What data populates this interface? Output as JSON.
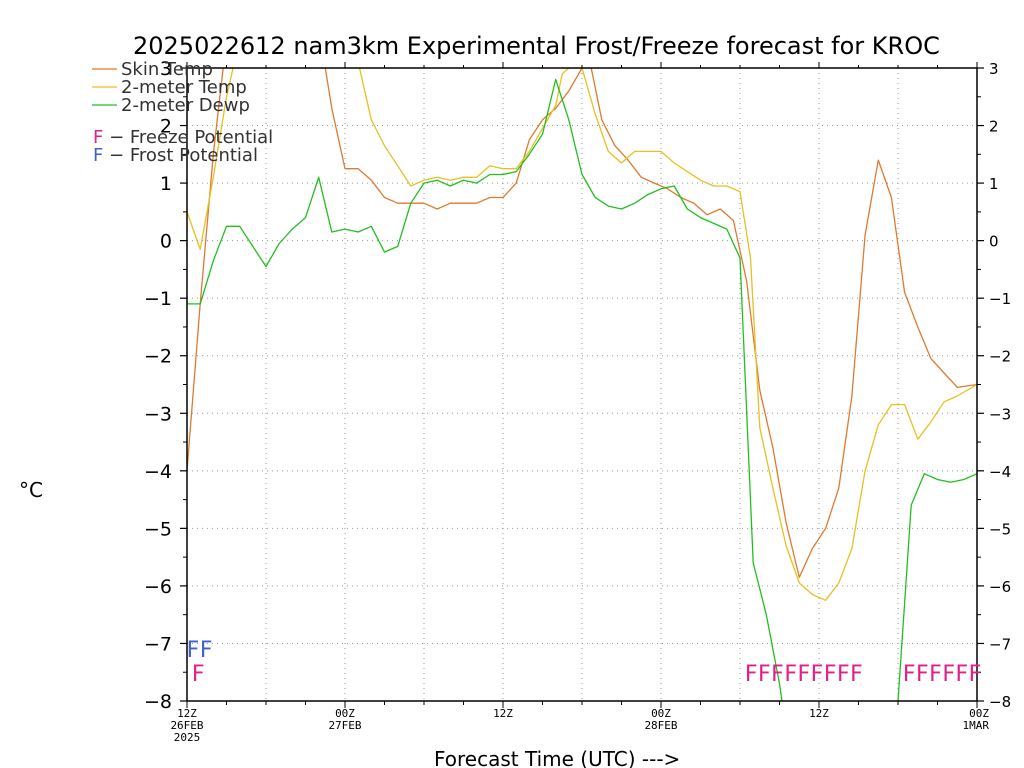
{
  "chart_data": {
    "type": "line",
    "title": "2025022612 nam3km Experimental Frost/Freeze forecast for KROC",
    "xlabel": "Forecast Time (UTC) --->",
    "ylabel": "°C",
    "ylim": [
      -8,
      3
    ],
    "y_ticks": [
      "−8",
      "−7",
      "−6",
      "−5",
      "−4",
      "−3",
      "−2",
      "−1",
      "0",
      "1",
      "2",
      "3"
    ],
    "y_tick_values": [
      -8,
      -7,
      -6,
      -5,
      -4,
      -3,
      -2,
      -1,
      0,
      1,
      2,
      3
    ],
    "x_range_hours": [
      0,
      60
    ],
    "x_ticks": [
      {
        "hour": 0,
        "lines": [
          "12Z",
          "26FEB",
          "2025"
        ]
      },
      {
        "hour": 12,
        "lines": [
          "00Z",
          "27FEB"
        ]
      },
      {
        "hour": 24,
        "lines": [
          "12Z"
        ]
      },
      {
        "hour": 36,
        "lines": [
          "00Z",
          "28FEB"
        ]
      },
      {
        "hour": 48,
        "lines": [
          "12Z"
        ]
      },
      {
        "hour": 60,
        "lines": [
          "00Z",
          "1MAR"
        ]
      }
    ],
    "grid": true,
    "legend_position": "top-left",
    "series": [
      {
        "name": "Skin Temp",
        "color": "#e07a30",
        "points": [
          [
            0,
            -4.0
          ],
          [
            1,
            -1.1
          ],
          [
            2,
            1.5
          ],
          [
            3,
            3.5
          ],
          [
            4,
            3.5
          ],
          [
            5,
            3.5
          ],
          [
            6,
            3.5
          ],
          [
            7,
            3.5
          ],
          [
            8,
            3.5
          ],
          [
            9,
            3.5
          ],
          [
            10,
            3.5
          ],
          [
            10.5,
            3.0
          ],
          [
            11,
            2.3
          ],
          [
            12,
            1.25
          ],
          [
            13,
            1.25
          ],
          [
            14,
            1.05
          ],
          [
            15,
            0.75
          ],
          [
            16,
            0.65
          ],
          [
            17,
            0.65
          ],
          [
            18,
            0.65
          ],
          [
            19,
            0.55
          ],
          [
            20,
            0.65
          ],
          [
            21,
            0.65
          ],
          [
            22,
            0.65
          ],
          [
            23,
            0.75
          ],
          [
            24,
            0.75
          ],
          [
            25,
            1.0
          ],
          [
            26,
            1.75
          ],
          [
            27,
            2.1
          ],
          [
            28,
            2.3
          ],
          [
            29,
            2.6
          ],
          [
            30,
            3.0
          ],
          [
            30.7,
            3.0
          ],
          [
            31.5,
            2.1
          ],
          [
            32.5,
            1.65
          ],
          [
            33.5,
            1.4
          ],
          [
            34.5,
            1.1
          ],
          [
            35.5,
            1.0
          ],
          [
            36.5,
            0.9
          ],
          [
            37.5,
            0.75
          ],
          [
            38.5,
            0.65
          ],
          [
            39.5,
            0.45
          ],
          [
            40.5,
            0.55
          ],
          [
            41.5,
            0.35
          ],
          [
            42.5,
            -0.7
          ],
          [
            43.5,
            -2.6
          ],
          [
            44.5,
            -3.6
          ],
          [
            45.5,
            -4.9
          ],
          [
            46.5,
            -5.85
          ],
          [
            47.5,
            -5.35
          ],
          [
            48.5,
            -5.0
          ],
          [
            49.5,
            -4.3
          ],
          [
            50.5,
            -2.7
          ],
          [
            51.5,
            0.1
          ],
          [
            52.5,
            1.4
          ],
          [
            53.5,
            0.75
          ],
          [
            54.5,
            -0.9
          ],
          [
            55.5,
            -1.5
          ],
          [
            56.5,
            -2.05
          ],
          [
            57.5,
            -2.3
          ],
          [
            58.5,
            -2.55
          ],
          [
            60,
            -2.5
          ]
        ]
      },
      {
        "name": "2-meter Temp",
        "color": "#e8c020",
        "points": [
          [
            0,
            0.5
          ],
          [
            1,
            -0.15
          ],
          [
            2,
            1.1
          ],
          [
            3,
            2.5
          ],
          [
            4,
            3.5
          ],
          [
            5,
            3.5
          ],
          [
            6,
            3.5
          ],
          [
            7,
            3.5
          ],
          [
            8,
            3.5
          ],
          [
            9,
            3.5
          ],
          [
            10,
            3.5
          ],
          [
            11,
            3.5
          ],
          [
            12,
            3.5
          ],
          [
            13,
            3.1
          ],
          [
            14,
            2.1
          ],
          [
            15,
            1.65
          ],
          [
            16,
            1.3
          ],
          [
            17,
            0.95
          ],
          [
            18,
            1.05
          ],
          [
            19,
            1.1
          ],
          [
            20,
            1.05
          ],
          [
            21,
            1.1
          ],
          [
            22,
            1.1
          ],
          [
            23,
            1.3
          ],
          [
            24,
            1.25
          ],
          [
            25,
            1.25
          ],
          [
            26,
            1.55
          ],
          [
            27,
            1.95
          ],
          [
            28,
            2.35
          ],
          [
            28.5,
            2.9
          ],
          [
            29,
            3.0
          ],
          [
            30,
            3.0
          ],
          [
            31,
            2.2
          ],
          [
            32,
            1.55
          ],
          [
            33,
            1.35
          ],
          [
            34,
            1.55
          ],
          [
            35,
            1.55
          ],
          [
            36,
            1.55
          ],
          [
            37,
            1.35
          ],
          [
            38,
            1.2
          ],
          [
            39,
            1.05
          ],
          [
            40,
            0.95
          ],
          [
            41,
            0.95
          ],
          [
            42,
            0.85
          ],
          [
            42.8,
            -0.3
          ],
          [
            43.5,
            -3.25
          ],
          [
            44.5,
            -4.3
          ],
          [
            45.5,
            -5.3
          ],
          [
            46.5,
            -5.95
          ],
          [
            47.5,
            -6.15
          ],
          [
            48.5,
            -6.25
          ],
          [
            49.5,
            -5.95
          ],
          [
            50.5,
            -5.35
          ],
          [
            51.5,
            -4.0
          ],
          [
            52.5,
            -3.2
          ],
          [
            53.5,
            -2.85
          ],
          [
            54.5,
            -2.85
          ],
          [
            55.5,
            -3.45
          ],
          [
            56.5,
            -3.15
          ],
          [
            57.5,
            -2.8
          ],
          [
            58.5,
            -2.7
          ],
          [
            60,
            -2.5
          ]
        ]
      },
      {
        "name": "2-meter Dewp",
        "color": "#20c020",
        "points": [
          [
            0,
            -1.1
          ],
          [
            1,
            -1.1
          ],
          [
            2,
            -0.35
          ],
          [
            3,
            0.25
          ],
          [
            4,
            0.25
          ],
          [
            5,
            -0.1
          ],
          [
            6,
            -0.45
          ],
          [
            7,
            -0.05
          ],
          [
            8,
            0.2
          ],
          [
            9,
            0.4
          ],
          [
            10,
            1.1
          ],
          [
            11,
            0.15
          ],
          [
            12,
            0.2
          ],
          [
            13,
            0.15
          ],
          [
            14,
            0.25
          ],
          [
            15,
            -0.2
          ],
          [
            16,
            -0.1
          ],
          [
            17,
            0.65
          ],
          [
            18,
            1.0
          ],
          [
            19,
            1.05
          ],
          [
            20,
            0.95
          ],
          [
            21,
            1.05
          ],
          [
            22,
            1.0
          ],
          [
            23,
            1.15
          ],
          [
            24,
            1.15
          ],
          [
            25,
            1.2
          ],
          [
            26,
            1.5
          ],
          [
            27,
            1.85
          ],
          [
            28,
            2.8
          ],
          [
            29,
            2.1
          ],
          [
            30,
            1.15
          ],
          [
            31,
            0.75
          ],
          [
            32,
            0.6
          ],
          [
            33,
            0.55
          ],
          [
            34,
            0.65
          ],
          [
            35,
            0.8
          ],
          [
            36,
            0.9
          ],
          [
            37,
            0.95
          ],
          [
            38,
            0.55
          ],
          [
            39,
            0.4
          ],
          [
            40,
            0.3
          ],
          [
            41,
            0.2
          ],
          [
            42,
            -0.3
          ],
          [
            43,
            -5.6
          ],
          [
            44,
            -6.5
          ],
          [
            45,
            -7.7
          ],
          [
            45.5,
            -8.5
          ],
          [
            53.5,
            -8.5
          ],
          [
            54,
            -8.0
          ],
          [
            55,
            -4.6
          ],
          [
            56,
            -4.05
          ],
          [
            57,
            -4.15
          ],
          [
            58,
            -4.2
          ],
          [
            59,
            -4.15
          ],
          [
            60,
            -4.05
          ]
        ]
      }
    ],
    "legend": [
      {
        "label": "Skin Temp",
        "color": "#e07a30"
      },
      {
        "label": "2-meter Temp",
        "color": "#e8c020"
      },
      {
        "label": "2-meter Dewp",
        "color": "#20c020"
      }
    ],
    "flag_legend": [
      {
        "symbol": "F",
        "text": " − Freeze Potential",
        "color": "#e0208a"
      },
      {
        "symbol": "F",
        "text": " − Frost Potential",
        "color": "#4060d0"
      }
    ],
    "flags": {
      "freeze": {
        "symbol": "F",
        "color": "#e0208a",
        "hours": [
          1,
          43,
          44,
          45,
          46,
          47,
          48,
          49,
          50,
          51,
          55,
          56,
          57,
          58,
          59,
          60
        ]
      },
      "frost": {
        "symbol": "F",
        "color": "#4060d0",
        "hours": [
          0,
          1
        ]
      }
    }
  }
}
